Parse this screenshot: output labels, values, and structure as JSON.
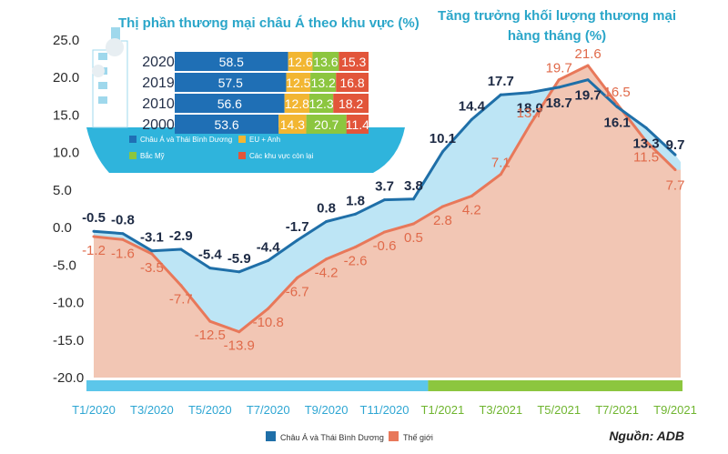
{
  "chart_data": {
    "type": "line",
    "categories": [
      "T1/2020",
      "T2/2020",
      "T3/2020",
      "T4/2020",
      "T5/2020",
      "T6/2020",
      "T7/2020",
      "T8/2020",
      "T9/2020",
      "T10/2020",
      "T11/2020",
      "T12/2020",
      "T1/2021",
      "T2/2021",
      "T3/2021",
      "T4/2021",
      "T5/2021",
      "T6/2021",
      "T7/2021",
      "T8/2021",
      "T9/2021"
    ],
    "x_tick_labels": [
      "T1/2020",
      "T3/2020",
      "T5/2020",
      "T7/2020",
      "T9/2020",
      "T11/2020",
      "T1/2021",
      "T3/2021",
      "T5/2021",
      "T7/2021",
      "T9/2021"
    ],
    "title": "Tăng trưởng khối lượng thương mại hàng tháng (%)",
    "y_ticks": [
      "25.0",
      "20.0",
      "15.0",
      "10.0",
      "5.0",
      "0.0",
      "-5.0",
      "-10.0",
      "-15.0",
      "-20.0"
    ],
    "ylim": [
      -20,
      25
    ],
    "series": [
      {
        "name": "Châu Á và Thái Bình Dương",
        "values": [
          -0.5,
          -0.8,
          -3.1,
          -2.9,
          -5.4,
          -5.9,
          -4.4,
          -1.7,
          0.8,
          1.8,
          3.7,
          3.8,
          10.1,
          14.4,
          17.7,
          18.0,
          18.7,
          19.7,
          16.1,
          13.3,
          9.7
        ],
        "labels": [
          "-0.5",
          "-0.8",
          "-3.1",
          "-2.9",
          "-5.4",
          "-5.9",
          "-4.4",
          "-1.7",
          "0.8",
          "1.8",
          "3.7",
          "3.8",
          "10.1",
          "14.4",
          "17.7",
          "18.0",
          "18.7",
          "19.7",
          "16.1",
          "13.3",
          "9.7"
        ]
      },
      {
        "name": "Thế giới",
        "values": [
          -1.2,
          -1.6,
          -3.5,
          -7.7,
          -12.5,
          -13.9,
          -10.8,
          -6.7,
          -4.2,
          -2.6,
          -0.6,
          0.5,
          2.8,
          4.2,
          7.1,
          13.7,
          19.7,
          21.6,
          16.5,
          11.5,
          7.7
        ],
        "labels": [
          "-1.2",
          "-1.6",
          "-3.5",
          "-7.7",
          "-12.5",
          "-13.9",
          "-10.8",
          "-6.7",
          "-4.2",
          "-2.6",
          "-0.6",
          "0.5",
          "2.8",
          "4.2",
          "7.1",
          "13.7",
          "19.7",
          "21.6",
          "16.5",
          "11.5",
          "7.7"
        ]
      }
    ],
    "colors": {
      "asia_line": "#1f6fa8",
      "asia_fill": "#bde5f5",
      "world_line": "#e8785a",
      "world_fill": "#f2c6b4",
      "bar_2020": "#5cc6ea",
      "bar_2021": "#8cc63f"
    },
    "source": "Nguồn: ADB"
  },
  "inset": {
    "title": "Thị phần thương mại châu Á theo khu vực (%)",
    "rows": [
      {
        "year": "2020",
        "values": [
          "58.5",
          "12.6",
          "13.6",
          "15.3"
        ]
      },
      {
        "year": "2019",
        "values": [
          "57.5",
          "12.5",
          "13.2",
          "16.8"
        ]
      },
      {
        "year": "2010",
        "values": [
          "56.6",
          "12.8",
          "12.3",
          "18.2"
        ]
      },
      {
        "year": "2000",
        "values": [
          "53.6",
          "14.3",
          "20.7",
          "11.4"
        ]
      }
    ],
    "legend": [
      "Châu Á và Thái Bình Dương",
      "EU + Anh",
      "Bắc Mỹ",
      "Các khu vực còn lại"
    ],
    "colors": [
      "#1f6fb5",
      "#f2b632",
      "#8cc63f",
      "#e2553a"
    ]
  }
}
